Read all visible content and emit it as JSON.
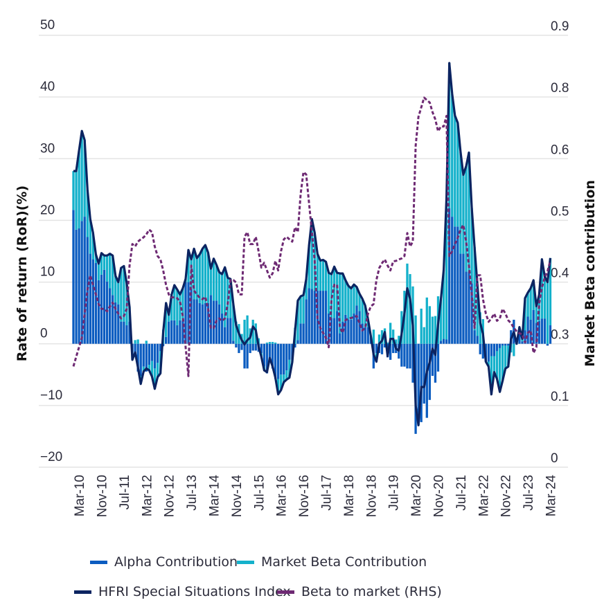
{
  "chart_data": {
    "type": "bar",
    "stacked": true,
    "title": "",
    "ylabel": "Rate of return (RoR)(%)",
    "y2label": "Market Beta contribution",
    "ylim": [
      -20,
      50
    ],
    "y2lim": [
      0,
      0.9
    ],
    "yticks": [
      "50",
      "40",
      "30",
      "20",
      "10",
      "0",
      "−10",
      "−20"
    ],
    "y2ticks": [
      "0.9",
      "0.8",
      "0.6",
      "0.5",
      "0.4",
      "0.3",
      "0.1",
      "0"
    ],
    "grid": true,
    "legend_position": "bottom",
    "xtick_labels": [
      "Mar-10",
      "Nov-10",
      "Jul-11",
      "Mar-12",
      "Nov-12",
      "Jul-13",
      "Mar-14",
      "Nov-14",
      "Jul-15",
      "Mar-16",
      "Nov-16",
      "Jul-17",
      "Mar-18",
      "Nov-18",
      "Jul-19",
      "Mar-20",
      "Nov-20",
      "Jul-21",
      "Mar-22",
      "Nov-22",
      "Jul-23",
      "Mar-24"
    ],
    "categories": [
      "Jan-10",
      "Feb-10",
      "Mar-10",
      "Apr-10",
      "May-10",
      "Jun-10",
      "Jul-10",
      "Aug-10",
      "Sep-10",
      "Oct-10",
      "Nov-10",
      "Dec-10",
      "Jan-11",
      "Feb-11",
      "Mar-11",
      "Apr-11",
      "May-11",
      "Jun-11",
      "Jul-11",
      "Aug-11",
      "Sep-11",
      "Oct-11",
      "Nov-11",
      "Dec-11",
      "Jan-12",
      "Feb-12",
      "Mar-12",
      "Apr-12",
      "May-12",
      "Jun-12",
      "Jul-12",
      "Aug-12",
      "Sep-12",
      "Oct-12",
      "Nov-12",
      "Dec-12",
      "Jan-13",
      "Feb-13",
      "Mar-13",
      "Apr-13",
      "May-13",
      "Jun-13",
      "Jul-13",
      "Aug-13",
      "Sep-13",
      "Oct-13",
      "Nov-13",
      "Dec-13",
      "Jan-14",
      "Feb-14",
      "Mar-14",
      "Apr-14",
      "May-14",
      "Jun-14",
      "Jul-14",
      "Aug-14",
      "Sep-14",
      "Oct-14",
      "Nov-14",
      "Dec-14",
      "Jan-15",
      "Feb-15",
      "Mar-15",
      "Apr-15",
      "May-15",
      "Jun-15",
      "Jul-15",
      "Aug-15",
      "Sep-15",
      "Oct-15",
      "Nov-15",
      "Dec-15",
      "Jan-16",
      "Feb-16",
      "Mar-16",
      "Apr-16",
      "May-16",
      "Jun-16",
      "Jul-16",
      "Aug-16",
      "Sep-16",
      "Oct-16",
      "Nov-16",
      "Dec-16",
      "Jan-17",
      "Feb-17",
      "Mar-17",
      "Apr-17",
      "May-17",
      "Jun-17",
      "Jul-17",
      "Aug-17",
      "Sep-17",
      "Oct-17",
      "Nov-17",
      "Dec-17",
      "Jan-18",
      "Feb-18",
      "Mar-18",
      "Apr-18",
      "May-18",
      "Jun-18",
      "Jul-18",
      "Aug-18",
      "Sep-18",
      "Oct-18",
      "Nov-18",
      "Dec-18",
      "Jan-19",
      "Feb-19",
      "Mar-19",
      "Apr-19",
      "May-19",
      "Jun-19",
      "Jul-19",
      "Aug-19",
      "Sep-19",
      "Oct-19",
      "Nov-19",
      "Dec-19",
      "Jan-20",
      "Feb-20",
      "Mar-20",
      "Apr-20",
      "May-20",
      "Jun-20",
      "Jul-20",
      "Aug-20",
      "Sep-20",
      "Oct-20",
      "Nov-20",
      "Dec-20",
      "Jan-21",
      "Feb-21",
      "Mar-21",
      "Apr-21",
      "May-21",
      "Jun-21",
      "Jul-21",
      "Aug-21",
      "Sep-21",
      "Oct-21",
      "Nov-21",
      "Dec-21",
      "Jan-22",
      "Feb-22",
      "Mar-22",
      "Apr-22",
      "May-22",
      "Jun-22",
      "Jul-22",
      "Aug-22",
      "Sep-22",
      "Oct-22",
      "Nov-22",
      "Dec-22",
      "Jan-23",
      "Feb-23",
      "Mar-23",
      "Apr-23",
      "May-23",
      "Jun-23",
      "Jul-23",
      "Aug-23",
      "Sep-23",
      "Oct-23",
      "Nov-23",
      "Dec-23",
      "Jan-24",
      "Feb-24",
      "Mar-24"
    ],
    "series": [
      {
        "name": "Alpha Contribution",
        "kind": "bar",
        "axis": "left",
        "color": "#0b5cc0",
        "values": [
          21.7,
          18.5,
          18.7,
          19.9,
          20.6,
          17.3,
          14.6,
          13.7,
          13.1,
          10.3,
          11.2,
          12,
          10.1,
          9,
          7.9,
          6.7,
          6.4,
          3.6,
          3.6,
          3,
          3.6,
          -2.6,
          -2,
          -4.5,
          -5.2,
          -3.7,
          -4.5,
          -3.4,
          -2.8,
          -4,
          -3.1,
          -1.2,
          -0.4,
          1.1,
          3.6,
          3.8,
          3.8,
          3,
          3.8,
          3.8,
          10,
          10,
          8.9,
          7.2,
          7.2,
          6.6,
          6.4,
          6.6,
          6.6,
          7.9,
          7,
          7,
          6.4,
          4.9,
          2.7,
          4.2,
          4.2,
          0.5,
          -0.6,
          -1.5,
          -1,
          -4,
          -4,
          -1.5,
          -1.1,
          -1.1,
          -1.3,
          -1.5,
          -3.7,
          -4.8,
          -2.6,
          -4,
          -5.7,
          -5.7,
          -5,
          -5,
          -4.3,
          -2.6,
          -2.6,
          -0.6,
          0.6,
          3.3,
          3.3,
          7.2,
          9,
          8.9,
          8.6,
          8.6,
          8.6,
          8.6,
          8.6,
          4.9,
          4.2,
          4.2,
          5.3,
          1.7,
          3.6,
          4.7,
          3.9,
          3.9,
          4.9,
          6.2,
          5.3,
          3.3,
          2.7,
          2.7,
          1.1,
          -4,
          -1.5,
          -1.5,
          -1.7,
          -0.6,
          -2.2,
          -2.6,
          -1.5,
          -1.5,
          -2.4,
          -3.7,
          -3.7,
          -4,
          -4,
          -6.3,
          -14.6,
          -12.7,
          -12.7,
          -9.7,
          -12,
          -9.1,
          -5.2,
          -6.3,
          -4.5,
          0.5,
          0.8,
          0.7,
          22,
          20.6,
          19,
          19,
          14.6,
          14.6,
          11.7,
          11.7,
          9.8,
          2.2,
          1.3,
          -1.7,
          -2.4,
          -2.9,
          -2.9,
          -2,
          -2,
          -1.2,
          -0.7,
          -0.3,
          -0.3,
          -0.3,
          2.2,
          3.9,
          0.1,
          2.2,
          0.4,
          2.2,
          4.4,
          3.9,
          5.5,
          3.4,
          3.7,
          4.1,
          4.1,
          -0.3,
          3
        ]
      },
      {
        "name": "Market Beta Contribution",
        "kind": "bar",
        "axis": "left",
        "color": "#14b1cb",
        "values": [
          6.3,
          9.5,
          12.6,
          14.6,
          12.4,
          7.7,
          5.6,
          4.3,
          1.4,
          2.7,
          3.5,
          2.3,
          4.2,
          5.6,
          6.4,
          4.3,
          3.6,
          8.7,
          9,
          6.8,
          2.4,
          0,
          0.6,
          0.7,
          -1.3,
          -0.8,
          0.5,
          -0.9,
          -2.5,
          -3.3,
          -2.3,
          -3.6,
          2.3,
          5.5,
          1.1,
          4.2,
          5.7,
          5.8,
          4.2,
          5.2,
          0.5,
          5.2,
          4.8,
          8.2,
          6.7,
          7.9,
          9,
          9.4,
          8.2,
          4.3,
          6.8,
          5.8,
          5.2,
          6.4,
          9.7,
          6.5,
          6.3,
          5.9,
          3.6,
          3.2,
          1.6,
          3.9,
          4.6,
          2.5,
          3.9,
          3.3,
          0.9,
          -0.6,
          -0.6,
          0.2,
          0.3,
          0.3,
          0.2,
          -2.5,
          -2.5,
          -1.2,
          -1.5,
          -2.9,
          -0.4,
          2.6,
          6.4,
          4.4,
          4.6,
          3.3,
          7,
          11.3,
          9.4,
          6,
          4.9,
          5,
          4.7,
          6.6,
          7.1,
          8.3,
          6.2,
          9.7,
          7.8,
          5.6,
          5.5,
          5.1,
          4.7,
          3,
          2.8,
          4,
          3.5,
          1.3,
          0.2,
          2.3,
          -1.4,
          1.5,
          2.2,
          2.5,
          0.2,
          3.4,
          2.3,
          0.7,
          1.3,
          5.3,
          8.6,
          13,
          11.3,
          9.3,
          4.6,
          -0.5,
          5.7,
          2.7,
          7.5,
          6.1,
          4.4,
          4.5,
          7.7,
          6.7,
          11.2,
          22.9,
          23.5,
          19.9,
          18,
          16.8,
          16.5,
          12.8,
          17.1,
          19.3,
          12.2,
          13.5,
          8.3,
          5.1,
          4,
          0,
          -0.8,
          -6.2,
          -2.6,
          -4.5,
          -7.1,
          -5.7,
          -3.7,
          -3.4,
          -1.4,
          -2,
          -0.1,
          0.5,
          0.4,
          5.2,
          3.9,
          5.1,
          4.8,
          2.7,
          4.2,
          9.6,
          6.8,
          10.3,
          10.9
        ]
      },
      {
        "name": "HFRI Special Situations Index",
        "kind": "line",
        "axis": "left",
        "color": "#0c2461",
        "values": [
          28,
          28,
          31.3,
          34.5,
          33,
          25,
          20.2,
          18,
          14.5,
          13,
          14.7,
          14.3,
          14.3,
          14.6,
          14.3,
          11,
          10,
          12.3,
          12.6,
          9.8,
          6,
          -2.6,
          -1.4,
          -3.8,
          -6.5,
          -4.5,
          -4,
          -4.3,
          -5.3,
          -7.3,
          -5.4,
          -4.8,
          1.9,
          6.6,
          4.7,
          8,
          9.5,
          8.8,
          8,
          9,
          10.5,
          15.2,
          13.7,
          15.4,
          13.9,
          14.5,
          15.4,
          16,
          14.8,
          12.2,
          13.8,
          12.8,
          11.6,
          11.3,
          12.4,
          10.7,
          10.5,
          6.4,
          3,
          1.7,
          0.6,
          -0.1,
          0.6,
          1,
          2.8,
          2.2,
          -0.4,
          -2.1,
          -4.3,
          -4.6,
          -2.3,
          -3.7,
          -5.5,
          -8.2,
          -7.5,
          -6.2,
          -5.8,
          -5.5,
          -3,
          2,
          7,
          7.7,
          7.9,
          10.5,
          16,
          20.2,
          18,
          14.6,
          13.5,
          13.6,
          13.3,
          11.5,
          11.3,
          12.5,
          11.5,
          11.4,
          11.4,
          10.3,
          9.4,
          9,
          9.6,
          9.2,
          8.1,
          7.3,
          6.2,
          4,
          1.3,
          -1.7,
          -2.9,
          0,
          0.5,
          1.9,
          -2,
          0.8,
          0.8,
          -0.8,
          -1.1,
          1.6,
          4.9,
          9,
          7.3,
          3,
          -10,
          -13.2,
          -7,
          -7,
          -4.5,
          -3,
          -0.8,
          -1.8,
          3.2,
          7.2,
          12,
          23.6,
          45.5,
          40.5,
          37,
          35.8,
          31.1,
          27.4,
          28.8,
          31,
          22,
          15.7,
          9.6,
          3.4,
          1.6,
          -2.9,
          -3.7,
          -8.2,
          -4.6,
          -5.7,
          -7.8,
          -6,
          -4,
          -3.7,
          0.8,
          1.9,
          0,
          2.7,
          0.8,
          7.4,
          8.3,
          9,
          10.3,
          6.1,
          7.9,
          13.7,
          10.9,
          10,
          13.9
        ]
      },
      {
        "name": "Beta to market (RHS)",
        "kind": "line",
        "style": "dashed",
        "axis": "right",
        "color": "#6e2a73",
        "values": [
          0.21,
          0.23,
          0.25,
          0.27,
          0.32,
          0.37,
          0.4,
          0.38,
          0.36,
          0.34,
          0.33,
          0.33,
          0.325,
          0.335,
          0.343,
          0.33,
          0.32,
          0.31,
          0.315,
          0.33,
          0.42,
          0.465,
          0.46,
          0.47,
          0.475,
          0.479,
          0.485,
          0.495,
          0.49,
          0.46,
          0.44,
          0.433,
          0.41,
          0.38,
          0.36,
          0.354,
          0.354,
          0.352,
          0.345,
          0.315,
          0.25,
          0.19,
          0.42,
          0.368,
          0.36,
          0.353,
          0.35,
          0.355,
          0.33,
          0.29,
          0.29,
          0.305,
          0.31,
          0.305,
          0.31,
          0.34,
          0.39,
          0.39,
          0.385,
          0.36,
          0.36,
          0.48,
          0.49,
          0.465,
          0.465,
          0.48,
          0.45,
          0.416,
          0.426,
          0.41,
          0.395,
          0.404,
          0.43,
          0.41,
          0.45,
          0.475,
          0.48,
          0.475,
          0.47,
          0.5,
          0.49,
          0.57,
          0.615,
          0.61,
          0.55,
          0.49,
          0.43,
          0.31,
          0.29,
          0.28,
          0.27,
          0.25,
          0.35,
          0.38,
          0.38,
          0.29,
          0.28,
          0.306,
          0.31,
          0.311,
          0.313,
          0.315,
          0.3,
          0.285,
          0.29,
          0.32,
          0.335,
          0.34,
          0.39,
          0.415,
          0.425,
          0.433,
          0.42,
          0.41,
          0.429,
          0.43,
          0.433,
          0.435,
          0.44,
          0.488,
          0.46,
          0.47,
          0.67,
          0.73,
          0.75,
          0.77,
          0.765,
          0.76,
          0.74,
          0.725,
          0.7,
          0.71,
          0.71,
          0.732,
          0.44,
          0.45,
          0.465,
          0.478,
          0.495,
          0.505,
          0.47,
          0.42,
          0.36,
          0.29,
          0.4,
          0.4,
          0.35,
          0.32,
          0.303,
          0.31,
          0.32,
          0.305,
          0.31,
          0.33,
          0.32,
          0.306,
          0.3,
          0.29,
          0.283,
          0.279,
          0.277,
          0.26,
          0.28,
          0.285,
          0.238,
          0.25,
          0.34,
          0.375,
          0.395,
          0.408,
          0.43
        ]
      }
    ]
  }
}
